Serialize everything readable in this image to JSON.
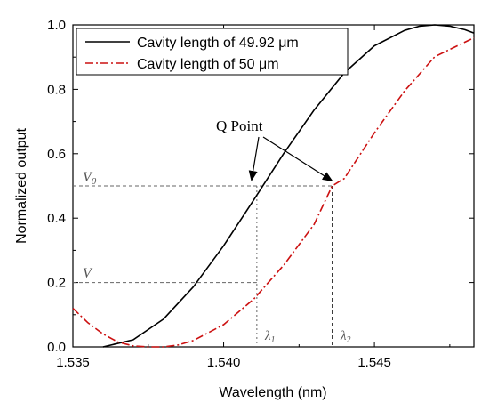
{
  "chart_data": {
    "type": "line",
    "xlabel": "Wavelength (nm)",
    "ylabel": "Normalized output",
    "xlim": [
      1.535,
      1.5483
    ],
    "ylim": [
      0,
      1.0
    ],
    "x_ticks": [
      "1.535",
      "1.540",
      "1.545"
    ],
    "x_tick_values": [
      1.535,
      1.54,
      1.545
    ],
    "y_ticks": [
      "0.0",
      "0.2",
      "0.4",
      "0.6",
      "0.8",
      "1.0"
    ],
    "y_tick_values": [
      0.0,
      0.2,
      0.4,
      0.6,
      0.8,
      1.0
    ],
    "grid": false,
    "legend_position": "top-left",
    "series": [
      {
        "name": "Cavity length of 49.92 μm",
        "color": "#000000",
        "dash": "solid",
        "x": [
          1.536,
          1.537,
          1.538,
          1.539,
          1.54,
          1.541,
          1.542,
          1.543,
          1.544,
          1.545,
          1.546,
          1.5465,
          1.547,
          1.5475,
          1.548,
          1.5483
        ],
        "y": [
          0.0,
          0.022,
          0.086,
          0.187,
          0.314,
          0.457,
          0.602,
          0.736,
          0.851,
          0.935,
          0.983,
          0.996,
          1.0,
          0.996,
          0.985,
          0.975
        ]
      },
      {
        "name": "Cavity length of 50 μm",
        "color": "#cc1111",
        "dash": "dashdot",
        "x": [
          1.535,
          1.5355,
          1.536,
          1.5365,
          1.537,
          1.5375,
          1.538,
          1.5385,
          1.539,
          1.54,
          1.541,
          1.542,
          1.543,
          1.5436,
          1.544,
          1.545,
          1.546,
          1.547,
          1.5483
        ],
        "y": [
          0.12,
          0.075,
          0.04,
          0.015,
          0.003,
          0.0,
          0.0,
          0.006,
          0.02,
          0.069,
          0.149,
          0.255,
          0.381,
          0.5,
          0.523,
          0.665,
          0.795,
          0.901,
          0.96
        ]
      }
    ],
    "annotations": {
      "q_point": "Q Point",
      "v0": "V",
      "v0_sub": "0",
      "v": "V",
      "lambda1": "λ",
      "lambda1_sub": "1",
      "lambda2": "λ",
      "lambda2_sub": "2"
    }
  }
}
